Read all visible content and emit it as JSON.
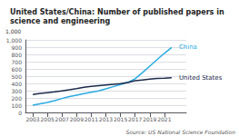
{
  "chart_data": {
    "type": "line",
    "title": "United States/China: Number of published papers in science and engineering",
    "ylabel": "1,000",
    "annotations": [
      "Source: US National Science Foundation"
    ],
    "x": [
      2003,
      2004,
      2005,
      2006,
      2007,
      2008,
      2009,
      2010,
      2011,
      2012,
      2013,
      2014,
      2015,
      2016,
      2017,
      2018,
      2019,
      2020,
      2021,
      2022
    ],
    "series": [
      {
        "name": "China",
        "color": "#29ABE2",
        "values": [
          100,
          118,
          138,
          162,
          192,
          218,
          238,
          258,
          278,
          298,
          325,
          355,
          385,
          415,
          465,
          548,
          638,
          728,
          815,
          895
        ]
      },
      {
        "name": "United States",
        "color": "#1B2A4A",
        "values": [
          248,
          263,
          273,
          283,
          298,
          312,
          328,
          348,
          358,
          368,
          378,
          388,
          398,
          413,
          438,
          448,
          458,
          468,
          472,
          478
        ]
      }
    ],
    "xlim": [
      2002,
      2024
    ],
    "xticks": [
      2003,
      2005,
      2007,
      2009,
      2011,
      2013,
      2015,
      2017,
      2019,
      2021
    ],
    "ylim": [
      0,
      1000
    ],
    "yticks": [
      0,
      100,
      200,
      300,
      400,
      500,
      600,
      700,
      800,
      900,
      {
        "value": 1000,
        "label": "1,000"
      }
    ],
    "grid": true
  }
}
